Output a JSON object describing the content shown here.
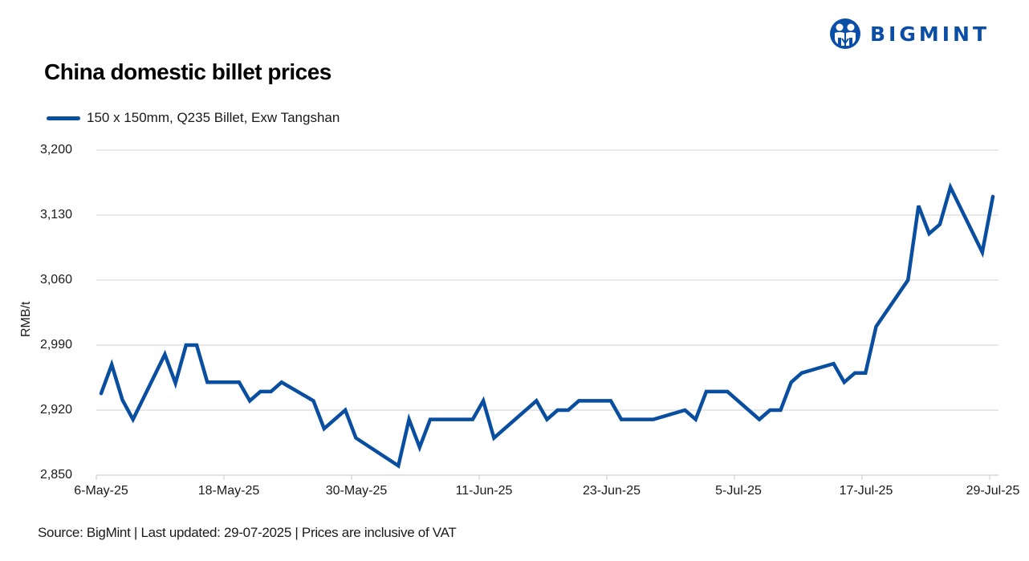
{
  "header": {
    "title": "China domestic billet prices",
    "logo_text": "BIGMINT",
    "logo_icon": "bigmint-people-icon"
  },
  "legend": {
    "label": "150 x 150mm, Q235 Billet, Exw Tangshan",
    "color": "#0a4ea0"
  },
  "footer": {
    "source": "Source: BigMint | Last updated: 29-07-2025 | Prices are inclusive of VAT"
  },
  "colors": {
    "line": "#0a4ea0",
    "brand": "#0a4ea8",
    "grid": "#d9d9d9"
  },
  "chart_data": {
    "type": "line",
    "title": "China domestic billet prices",
    "xlabel": "",
    "ylabel": "RMB/t",
    "ylim": [
      2850,
      3200
    ],
    "yticks": [
      "2,850",
      "2,920",
      "2,990",
      "3,060",
      "3,130",
      "3,200"
    ],
    "ytick_values": [
      2850,
      2920,
      2990,
      3060,
      3130,
      3200
    ],
    "xticks": [
      "6-May-25",
      "18-May-25",
      "30-May-25",
      "11-Jun-25",
      "23-Jun-25",
      "5-Jul-25",
      "17-Jul-25",
      "29-Jul-25"
    ],
    "grid": true,
    "legend_position": "top-left",
    "series": [
      {
        "name": "150 x 150mm, Q235 Billet, Exw Tangshan",
        "x": [
          "2025-05-06",
          "2025-05-07",
          "2025-05-08",
          "2025-05-09",
          "2025-05-12",
          "2025-05-13",
          "2025-05-14",
          "2025-05-15",
          "2025-05-16",
          "2025-05-19",
          "2025-05-20",
          "2025-05-21",
          "2025-05-22",
          "2025-05-23",
          "2025-05-26",
          "2025-05-27",
          "2025-05-29",
          "2025-05-30",
          "2025-06-03",
          "2025-06-04",
          "2025-06-05",
          "2025-06-06",
          "2025-06-10",
          "2025-06-11",
          "2025-06-12",
          "2025-06-16",
          "2025-06-17",
          "2025-06-18",
          "2025-06-19",
          "2025-06-20",
          "2025-06-23",
          "2025-06-24",
          "2025-06-27",
          "2025-06-30",
          "2025-07-01",
          "2025-07-02",
          "2025-07-04",
          "2025-07-07",
          "2025-07-08",
          "2025-07-09",
          "2025-07-10",
          "2025-07-11",
          "2025-07-14",
          "2025-07-15",
          "2025-07-16",
          "2025-07-17",
          "2025-07-18",
          "2025-07-21",
          "2025-07-22",
          "2025-07-23",
          "2025-07-24",
          "2025-07-25",
          "2025-07-28",
          "2025-07-29"
        ],
        "day_offset": [
          0,
          1,
          2,
          3,
          6,
          7,
          8,
          9,
          10,
          13,
          14,
          15,
          16,
          17,
          20,
          21,
          23,
          24,
          28,
          29,
          30,
          31,
          35,
          36,
          37,
          41,
          42,
          43,
          44,
          45,
          48,
          49,
          52,
          55,
          56,
          57,
          59,
          62,
          63,
          64,
          65,
          66,
          69,
          70,
          71,
          72,
          73,
          76,
          77,
          78,
          79,
          80,
          83,
          84
        ],
        "values": [
          2938,
          2969,
          2931,
          2910,
          2980,
          2949,
          2990,
          2990,
          2950,
          2950,
          2930,
          2940,
          2940,
          2950,
          2930,
          2900,
          2920,
          2890,
          2860,
          2910,
          2880,
          2910,
          2910,
          2930,
          2890,
          2930,
          2910,
          2920,
          2920,
          2930,
          2930,
          2910,
          2910,
          2920,
          2910,
          2940,
          2940,
          2910,
          2920,
          2920,
          2950,
          2960,
          2970,
          2950,
          2960,
          2960,
          3010,
          3060,
          3140,
          3110,
          3120,
          3160,
          3090,
          3150
        ]
      }
    ]
  }
}
